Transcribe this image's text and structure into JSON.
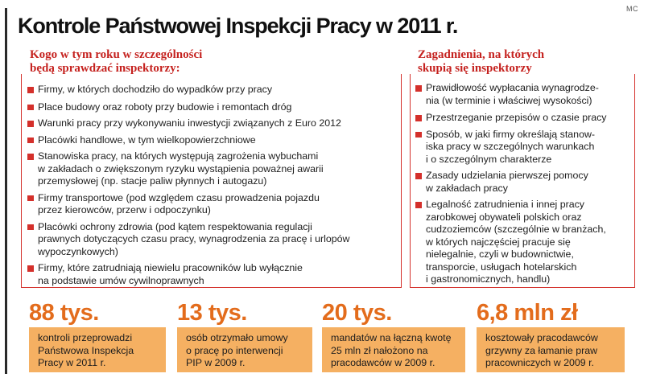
{
  "credit": "MC",
  "title": "Kontrole Państwowej Inspekcji Pracy w 2011 r.",
  "left_panel": {
    "heading": [
      "Kogo w tym roku w szczególności",
      "będą sprawdzać inspektorzy:"
    ],
    "items": [
      [
        "Firmy, w których dochodziło do wypadków przy pracy"
      ],
      [
        "Place budowy oraz roboty przy budowie i remontach dróg"
      ],
      [
        "Warunki pracy przy wykonywaniu inwestycji związanych z Euro 2012"
      ],
      [
        "Placówki handlowe, w tym wielkopowierzchniowe"
      ],
      [
        "Stanowiska pracy, na których występują zagrożenia wybuchami",
        "w zakładach o zwiększonym ryzyku wystąpienia poważnej awarii",
        "przemysłowej (np. stacje paliw płynnych i autogazu)"
      ],
      [
        "Firmy transportowe (pod względem czasu prowadzenia pojazdu",
        "przez kierowców, przerw i odpoczynku)"
      ],
      [
        "Placówki ochrony zdrowia (pod kątem respektowania regulacji",
        "prawnych dotyczących czasu pracy, wynagrodzenia za pracę i urlopów",
        "wypoczynkowych)"
      ],
      [
        "Firmy, które zatrudniają niewielu pracowników lub wyłącznie",
        "na podstawie umów cywilnoprawnych"
      ]
    ]
  },
  "right_panel": {
    "heading": [
      "Zagadnienia, na których",
      "skupią się inspektorzy"
    ],
    "items": [
      [
        "Prawidłowość wypłacania wynagrodze-",
        "nia (w terminie i właściwej wysokości)"
      ],
      [
        "Przestrzeganie przepisów o czasie pracy"
      ],
      [
        "Sposób, w jaki firmy określają stanow-",
        "iska pracy w szczególnych warunkach",
        "i o szczególnym charakterze"
      ],
      [
        "Zasady udzielania pierwszej pomocy",
        "w zakładach pracy"
      ],
      [
        "Legalność zatrudnienia i innej pracy",
        "zarobkowej obywateli polskich oraz",
        "cudzoziemców (szczególnie w branżach,",
        "w których najczęściej pracuje się",
        "nielegalnie, czyli w budownictwie,",
        "transporcie, usługach hotelarskich",
        "i gastronomicznych, handlu)"
      ]
    ]
  },
  "stats": [
    {
      "number": "88 tys.",
      "desc": [
        "kontroli przeprowadzi",
        "Państwowa Inspekcja",
        "Pracy w 2011 r."
      ]
    },
    {
      "number": "13 tys.",
      "desc": [
        "osób otrzymało umowy",
        "o pracę po interwencji",
        "PIP w 2009 r."
      ]
    },
    {
      "number": "20 tys.",
      "desc": [
        "mandatów na łączną kwotę",
        "25 mln zł nałożono na",
        "pracodawców w 2009 r."
      ]
    },
    {
      "number": "6,8 mln zł",
      "desc": [
        "kosztowały pracodawców",
        "grzywny za łamanie praw",
        "pracowniczych w 2009 r."
      ]
    }
  ],
  "colors": {
    "accent_red": "#d4302b",
    "heading_red": "#c5221f",
    "stat_orange": "#e36c1c",
    "box_orange": "#f5b062"
  }
}
